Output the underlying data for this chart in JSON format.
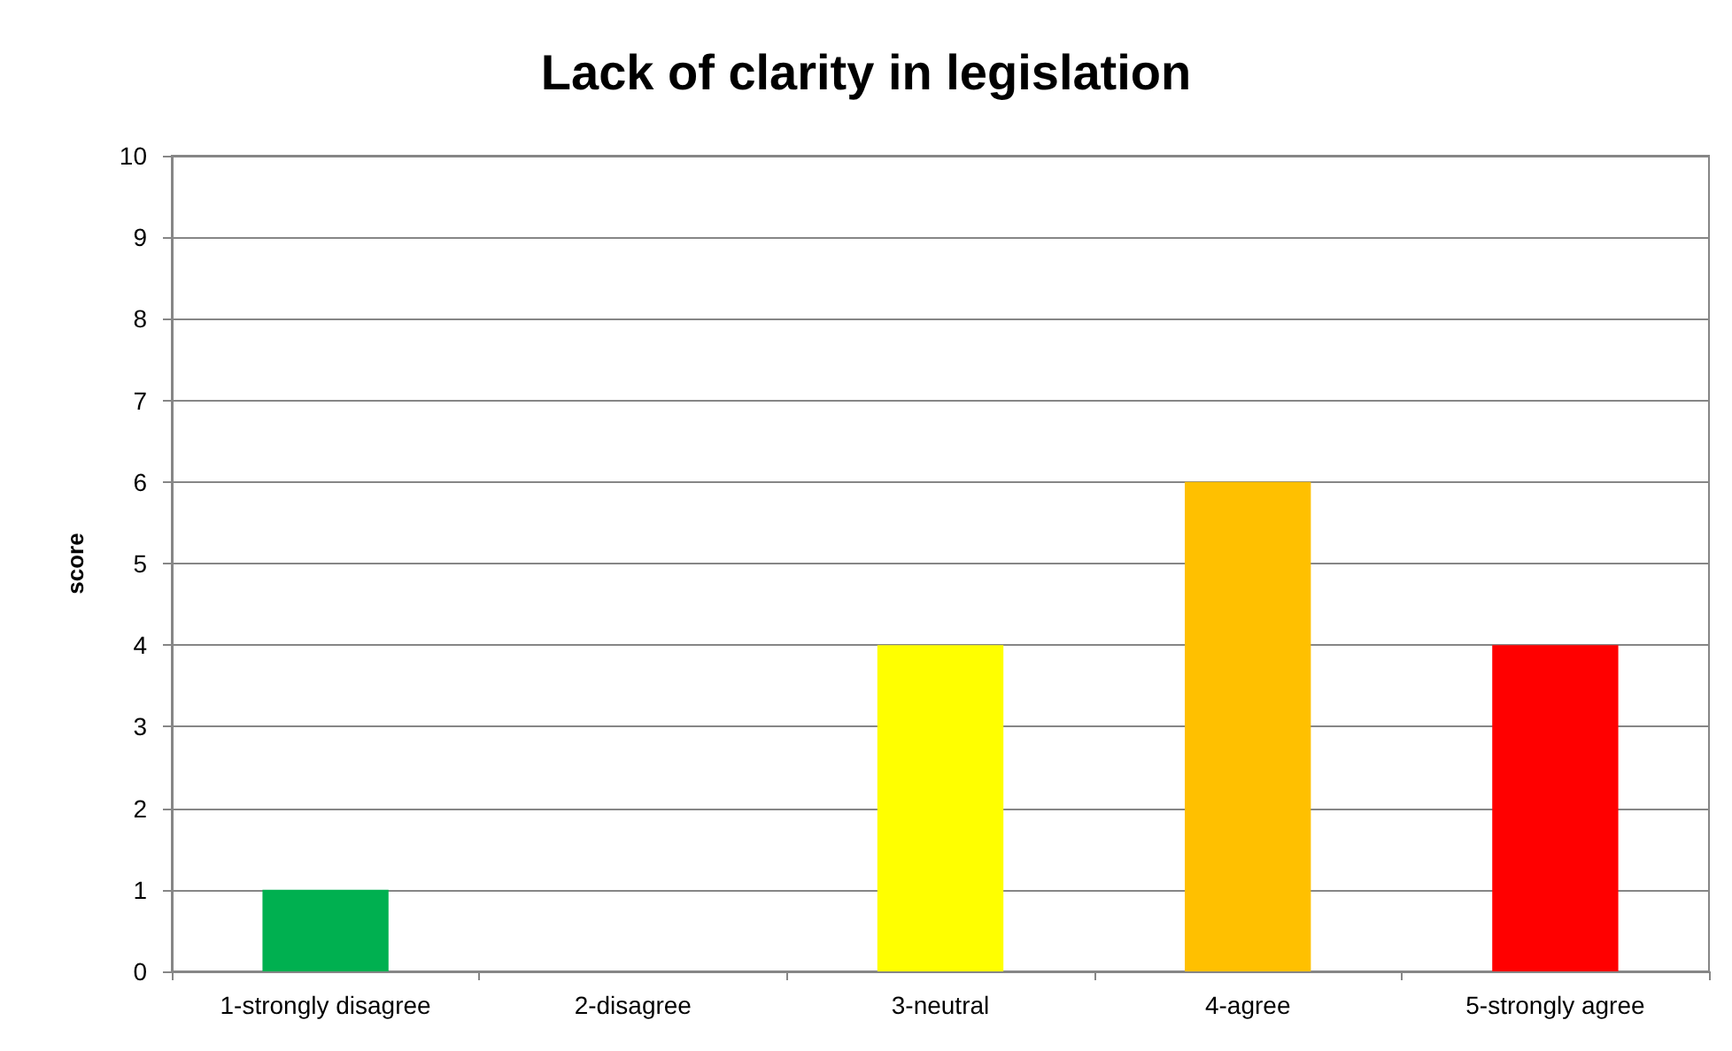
{
  "chart_data": {
    "type": "bar",
    "title": "Lack of clarity in legislation",
    "ylabel": "score",
    "categories": [
      "1-strongly disagree",
      "2-disagree",
      "3-neutral",
      "4-agree",
      "5-strongly agree"
    ],
    "values": [
      1,
      0,
      4,
      6,
      4
    ],
    "colors": [
      "#00b050",
      "#00b050",
      "#ffff00",
      "#ffc000",
      "#ff0000"
    ],
    "ylim": [
      0,
      10
    ],
    "yticks": [
      0,
      1,
      2,
      3,
      4,
      5,
      6,
      7,
      8,
      9,
      10
    ],
    "grid": "y"
  }
}
